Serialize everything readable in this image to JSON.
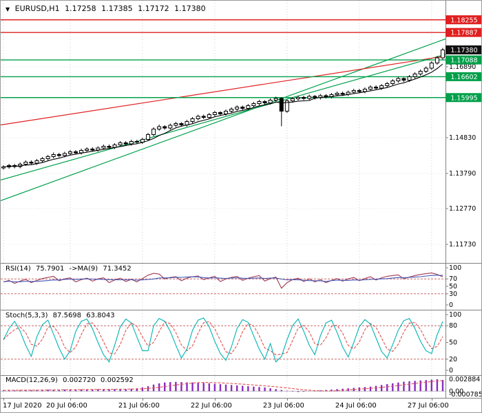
{
  "header": {
    "symbol": "EURUSD,H1",
    "open": "1.17258",
    "high": "1.17385",
    "low": "1.17172",
    "close": "1.17380"
  },
  "panels": {
    "rsi": {
      "name": "RSI(14)",
      "value": "75.7901",
      "ma_label": "->MA(9)",
      "ma_value": "71.3452"
    },
    "stoch": {
      "name": "Stoch(5,3,3)",
      "value": "87.5698",
      "signal_value": "63.8043"
    },
    "macd": {
      "name": "MACD(12,26,9)",
      "value": "0.002720",
      "signal_value": "0.002592"
    }
  },
  "chart_data": [
    {
      "type": "candlestick",
      "title": "EURUSD,H1",
      "ylim": [
        1.1125,
        1.1865
      ],
      "yticks": [
        {
          "v": 1.1689,
          "label": "1.16890"
        },
        {
          "v": 1.1483,
          "label": "1.14830"
        },
        {
          "v": 1.1379,
          "label": "1.13790"
        },
        {
          "v": 1.1277,
          "label": "1.12770"
        },
        {
          "v": 1.1173,
          "label": "1.11730"
        }
      ],
      "levels": [
        {
          "price": 1.18255,
          "label": "1.18255",
          "color": "#e01f1f",
          "line": true
        },
        {
          "price": 1.17887,
          "label": "1.17887",
          "color": "#e01f1f",
          "line": true
        },
        {
          "price": 1.1738,
          "label": "1.17380",
          "color": "#111111",
          "line": false
        },
        {
          "price": 1.17088,
          "label": "1.17088",
          "color": "#00a04a",
          "line": true
        },
        {
          "price": 1.16602,
          "label": "1.16602",
          "color": "#00a04a",
          "line": true
        },
        {
          "price": 1.15995,
          "label": "1.15995",
          "color": "#00a04a",
          "line": true
        }
      ],
      "trendlines": [
        {
          "x1": 0,
          "p1": 1.136,
          "x2": 1,
          "p2": 1.1725,
          "color": "#00a04a"
        },
        {
          "x1": 0,
          "p1": 1.13,
          "x2": 1,
          "p2": 1.177,
          "color": "#00a04a"
        },
        {
          "x1": 0,
          "p1": 1.152,
          "x2": 1,
          "p2": 1.172,
          "color": "#e01f1f"
        }
      ],
      "x_labels": [
        {
          "label": "17 Jul 2020",
          "i": 0
        },
        {
          "label": "20 Jul 06:00",
          "i": 12
        },
        {
          "label": "21 Jul 06:00",
          "i": 25
        },
        {
          "label": "22 Jul 06:00",
          "i": 38
        },
        {
          "label": "23 Jul 06:00",
          "i": 51
        },
        {
          "label": "24 Jul 06:00",
          "i": 64
        },
        {
          "label": "27 Jul 06:00",
          "i": 77
        }
      ],
      "ma_period": 6,
      "ohlc": [
        [
          1.1395,
          1.1403,
          1.139,
          1.1398
        ],
        [
          1.1398,
          1.1407,
          1.1393,
          1.1402
        ],
        [
          1.1402,
          1.1407,
          1.1394,
          1.1399
        ],
        [
          1.1399,
          1.1411,
          1.1394,
          1.1406
        ],
        [
          1.1406,
          1.1417,
          1.1401,
          1.1412
        ],
        [
          1.1412,
          1.1417,
          1.1404,
          1.1409
        ],
        [
          1.1409,
          1.1421,
          1.1404,
          1.1416
        ],
        [
          1.1416,
          1.1427,
          1.1411,
          1.1422
        ],
        [
          1.1422,
          1.1433,
          1.1417,
          1.1428
        ],
        [
          1.1428,
          1.144,
          1.1423,
          1.1434
        ],
        [
          1.1434,
          1.1439,
          1.1426,
          1.1431
        ],
        [
          1.1431,
          1.1442,
          1.1426,
          1.1437
        ],
        [
          1.1437,
          1.1447,
          1.1432,
          1.1442
        ],
        [
          1.1442,
          1.1447,
          1.1434,
          1.1439
        ],
        [
          1.1439,
          1.1451,
          1.1434,
          1.1446
        ],
        [
          1.1446,
          1.1455,
          1.1441,
          1.145
        ],
        [
          1.145,
          1.1455,
          1.1442,
          1.1447
        ],
        [
          1.1447,
          1.1458,
          1.1442,
          1.1453
        ],
        [
          1.1453,
          1.1463,
          1.1448,
          1.1458
        ],
        [
          1.1458,
          1.1463,
          1.145,
          1.1455
        ],
        [
          1.1455,
          1.1467,
          1.145,
          1.1462
        ],
        [
          1.1462,
          1.1473,
          1.1457,
          1.1468
        ],
        [
          1.1468,
          1.1473,
          1.146,
          1.1465
        ],
        [
          1.1465,
          1.1477,
          1.146,
          1.1472
        ],
        [
          1.1472,
          1.1477,
          1.1465,
          1.147
        ],
        [
          1.147,
          1.1483,
          1.1465,
          1.1478
        ],
        [
          1.1478,
          1.1497,
          1.1473,
          1.1492
        ],
        [
          1.1492,
          1.1513,
          1.1487,
          1.1508
        ],
        [
          1.1508,
          1.1521,
          1.1503,
          1.1515
        ],
        [
          1.1515,
          1.1519,
          1.1506,
          1.1511
        ],
        [
          1.1511,
          1.1524,
          1.1506,
          1.1519
        ],
        [
          1.1519,
          1.1529,
          1.1514,
          1.1524
        ],
        [
          1.1524,
          1.1528,
          1.1515,
          1.152
        ],
        [
          1.152,
          1.1535,
          1.1515,
          1.153
        ],
        [
          1.153,
          1.1543,
          1.1525,
          1.1538
        ],
        [
          1.1538,
          1.155,
          1.1533,
          1.1545
        ],
        [
          1.1545,
          1.155,
          1.1537,
          1.1542
        ],
        [
          1.1542,
          1.1555,
          1.1537,
          1.155
        ],
        [
          1.155,
          1.1561,
          1.1545,
          1.1556
        ],
        [
          1.1556,
          1.156,
          1.1547,
          1.1552
        ],
        [
          1.1552,
          1.1565,
          1.1547,
          1.156
        ],
        [
          1.156,
          1.1571,
          1.1555,
          1.1566
        ],
        [
          1.1566,
          1.1577,
          1.1561,
          1.1572
        ],
        [
          1.1572,
          1.1576,
          1.1563,
          1.1568
        ],
        [
          1.1568,
          1.1581,
          1.1563,
          1.1576
        ],
        [
          1.1576,
          1.1587,
          1.1571,
          1.1582
        ],
        [
          1.1582,
          1.1593,
          1.1577,
          1.1588
        ],
        [
          1.1588,
          1.1592,
          1.1579,
          1.1584
        ],
        [
          1.1584,
          1.1597,
          1.1579,
          1.1592
        ],
        [
          1.1592,
          1.1602,
          1.1587,
          1.1597
        ],
        [
          1.1597,
          1.16,
          1.1516,
          1.156
        ],
        [
          1.156,
          1.1595,
          1.1555,
          1.159
        ],
        [
          1.159,
          1.1601,
          1.1585,
          1.1596
        ],
        [
          1.1596,
          1.1605,
          1.1591,
          1.16
        ],
        [
          1.16,
          1.1605,
          1.1592,
          1.1597
        ],
        [
          1.1597,
          1.1608,
          1.1592,
          1.1603
        ],
        [
          1.1603,
          1.1607,
          1.1594,
          1.1599
        ],
        [
          1.1599,
          1.161,
          1.1594,
          1.1605
        ],
        [
          1.1605,
          1.161,
          1.1597,
          1.1602
        ],
        [
          1.1602,
          1.1613,
          1.1597,
          1.1608
        ],
        [
          1.1608,
          1.1617,
          1.1603,
          1.1612
        ],
        [
          1.1612,
          1.1617,
          1.1604,
          1.1609
        ],
        [
          1.1609,
          1.162,
          1.1604,
          1.1615
        ],
        [
          1.1615,
          1.1625,
          1.161,
          1.162
        ],
        [
          1.162,
          1.1625,
          1.1612,
          1.1617
        ],
        [
          1.1617,
          1.1629,
          1.1612,
          1.1624
        ],
        [
          1.1624,
          1.1635,
          1.1619,
          1.163
        ],
        [
          1.163,
          1.1635,
          1.1622,
          1.1627
        ],
        [
          1.1627,
          1.1639,
          1.1622,
          1.1634
        ],
        [
          1.1634,
          1.1645,
          1.1629,
          1.164
        ],
        [
          1.164,
          1.1653,
          1.1635,
          1.1648
        ],
        [
          1.1648,
          1.166,
          1.1643,
          1.1655
        ],
        [
          1.1655,
          1.1658,
          1.1645,
          1.165
        ],
        [
          1.165,
          1.1665,
          1.1645,
          1.166
        ],
        [
          1.166,
          1.1673,
          1.1655,
          1.1668
        ],
        [
          1.1668,
          1.1681,
          1.1663,
          1.1676
        ],
        [
          1.1676,
          1.169,
          1.1671,
          1.1685
        ],
        [
          1.1685,
          1.1705,
          1.168,
          1.17
        ],
        [
          1.17,
          1.172,
          1.1695,
          1.1715
        ],
        [
          1.1715,
          1.1744,
          1.171,
          1.1738
        ]
      ]
    },
    {
      "type": "line",
      "name": "RSI(14)",
      "ylim": [
        0,
        100
      ],
      "yticks": [
        100,
        70,
        50,
        30,
        0
      ],
      "levels": [
        70,
        30
      ],
      "color": "#a03850",
      "ma_color": "#4055b5",
      "ma_period": 9,
      "values": [
        62,
        66,
        58,
        64,
        69,
        60,
        66,
        71,
        74,
        77,
        65,
        70,
        73,
        62,
        68,
        72,
        64,
        70,
        73,
        60,
        67,
        72,
        63,
        69,
        62,
        71,
        80,
        85,
        83,
        70,
        74,
        76,
        65,
        72,
        76,
        78,
        68,
        73,
        77,
        63,
        70,
        74,
        77,
        66,
        72,
        76,
        79,
        64,
        71,
        75,
        45,
        60,
        68,
        72,
        63,
        70,
        62,
        68,
        60,
        66,
        71,
        64,
        70,
        74,
        65,
        71,
        76,
        67,
        73,
        77,
        79,
        81,
        70,
        75,
        79,
        82,
        84,
        86,
        82,
        75.79
      ]
    },
    {
      "type": "line",
      "name": "Stoch(5,3,3)",
      "ylim": [
        0,
        100
      ],
      "yticks": [
        100,
        80,
        50,
        20,
        0
      ],
      "levels": [
        80,
        20
      ],
      "color": "#00b3b3",
      "signal_color": "#e05050",
      "signal_period": 3,
      "values": [
        55,
        75,
        88,
        70,
        45,
        25,
        60,
        82,
        90,
        65,
        40,
        20,
        35,
        70,
        88,
        92,
        75,
        50,
        28,
        15,
        45,
        78,
        92,
        85,
        60,
        35,
        35,
        80,
        93,
        88,
        70,
        45,
        22,
        38,
        72,
        90,
        94,
        78,
        52,
        30,
        18,
        42,
        75,
        91,
        86,
        62,
        38,
        20,
        48,
        15,
        25,
        55,
        80,
        92,
        70,
        45,
        28,
        62,
        85,
        90,
        68,
        42,
        24,
        50,
        78,
        91,
        83,
        58,
        34,
        22,
        46,
        72,
        89,
        93,
        75,
        52,
        35,
        30,
        64,
        87.57
      ]
    },
    {
      "type": "bar",
      "name": "MACD(12,26,9)",
      "ylim": [
        -0.000785,
        0.002884
      ],
      "yticks": [
        {
          "v": 0.002884,
          "label": "0.002884"
        },
        {
          "v": 0,
          "label": "0.00"
        },
        {
          "v": -0.000785,
          "label": "-0.000785"
        }
      ],
      "color": "#8a2bbe",
      "signal_color": "#e05050",
      "signal_period": 9,
      "values": [
        0.0002,
        0.00025,
        0.0002,
        0.00028,
        0.0003,
        0.00026,
        0.0003,
        0.00034,
        0.00038,
        0.0004,
        0.00036,
        0.0004,
        0.00044,
        0.0004,
        0.00044,
        0.00048,
        0.00044,
        0.00048,
        0.00052,
        0.00046,
        0.0005,
        0.00055,
        0.0005,
        0.0006,
        0.0007,
        0.0009,
        0.0012,
        0.0016,
        0.0019,
        0.0021,
        0.0022,
        0.00225,
        0.0022,
        0.00215,
        0.0021,
        0.00205,
        0.002,
        0.0019,
        0.0018,
        0.0017,
        0.0016,
        0.0015,
        0.0014,
        0.0013,
        0.0012,
        0.0011,
        0.001,
        0.0009,
        0.0007,
        0.0005,
        0.0003,
        0.0001,
        -0.0001,
        -0.0002,
        -0.00015,
        0,
        0.0001,
        0.0002,
        0.0003,
        0.0004,
        0.0005,
        0.0006,
        0.0007,
        0.0008,
        0.0009,
        0.001,
        0.0011,
        0.0013,
        0.0015,
        0.0017,
        0.0019,
        0.0021,
        0.0023,
        0.0024,
        0.0025,
        0.0026,
        0.0027,
        0.0028,
        0.002884,
        0.00272
      ]
    }
  ]
}
